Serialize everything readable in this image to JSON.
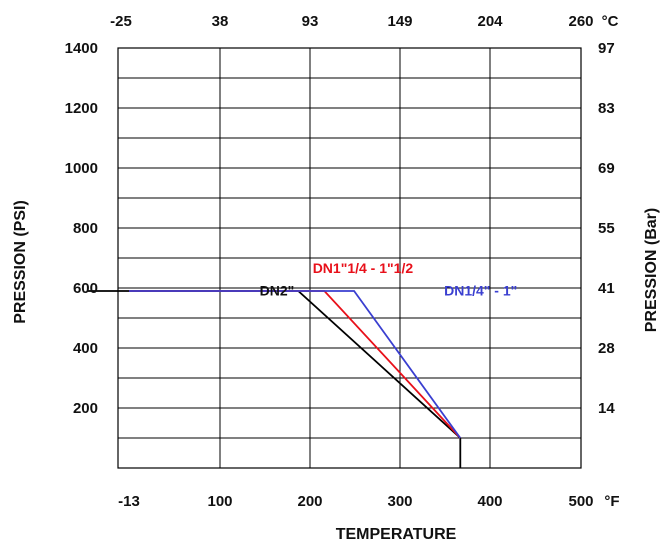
{
  "chart_data": {
    "type": "line",
    "xlabel": "TEMPERATURE",
    "ylabel_left": "PRESSION (PSI)",
    "ylabel_right": "PRESSION (Bar)",
    "x_unit_bottom": "°F",
    "x_unit_top": "°C",
    "xlim": [
      -13,
      500
    ],
    "ylim": [
      0,
      1400
    ],
    "grid": true,
    "x_bottom_ticks": [
      {
        "value": -13,
        "label": "-13"
      },
      {
        "value": 100,
        "label": "100"
      },
      {
        "value": 200,
        "label": "200"
      },
      {
        "value": 300,
        "label": "300"
      },
      {
        "value": 400,
        "label": "400"
      },
      {
        "value": 500,
        "label": "500"
      }
    ],
    "x_top_ticks": [
      {
        "value": -13,
        "label": "-25"
      },
      {
        "value": 100,
        "label": "38"
      },
      {
        "value": 200,
        "label": "93"
      },
      {
        "value": 300,
        "label": "149"
      },
      {
        "value": 400,
        "label": "204"
      },
      {
        "value": 500,
        "label": "260"
      }
    ],
    "y_left_ticks": [
      {
        "value": 200,
        "label": "200"
      },
      {
        "value": 400,
        "label": "400"
      },
      {
        "value": 600,
        "label": "600"
      },
      {
        "value": 800,
        "label": "800"
      },
      {
        "value": 1000,
        "label": "1000"
      },
      {
        "value": 1200,
        "label": "1200"
      },
      {
        "value": 1400,
        "label": "1400"
      }
    ],
    "y_right_ticks": [
      {
        "value": 200,
        "label": "14"
      },
      {
        "value": 400,
        "label": "28"
      },
      {
        "value": 600,
        "label": "41"
      },
      {
        "value": 800,
        "label": "55"
      },
      {
        "value": 1000,
        "label": "69"
      },
      {
        "value": 1200,
        "label": "83"
      },
      {
        "value": 1400,
        "label": "97"
      }
    ],
    "y_minor_gridlines": [
      100,
      300,
      500,
      700,
      900,
      1100,
      1300
    ],
    "series": [
      {
        "name": "DN2\"",
        "color": "#000000",
        "points": [
          [
            -13,
            590
          ],
          [
            187,
            590
          ],
          [
            367,
            100
          ],
          [
            367,
            0
          ]
        ]
      },
      {
        "name": "DN1\"1/4 - 1\"1/2",
        "color": "#e8101a",
        "points": [
          [
            -13,
            590
          ],
          [
            216,
            590
          ],
          [
            367,
            100
          ]
        ]
      },
      {
        "name": "DN1/4\" - 1\"",
        "color": "#3a3fd0",
        "points": [
          [
            -13,
            590
          ],
          [
            249,
            590
          ],
          [
            367,
            100
          ]
        ]
      }
    ],
    "series_labels": [
      {
        "text": "DN1\"1/4 - 1\"1/2",
        "color": "#e8101a",
        "x": 203,
        "y": 650
      },
      {
        "text": "DN2\"",
        "color": "#111111",
        "x": 144,
        "y": 575
      },
      {
        "text": "DN1/4\" - 1\"",
        "color": "#3a3fd0",
        "x": 349,
        "y": 575
      }
    ]
  }
}
